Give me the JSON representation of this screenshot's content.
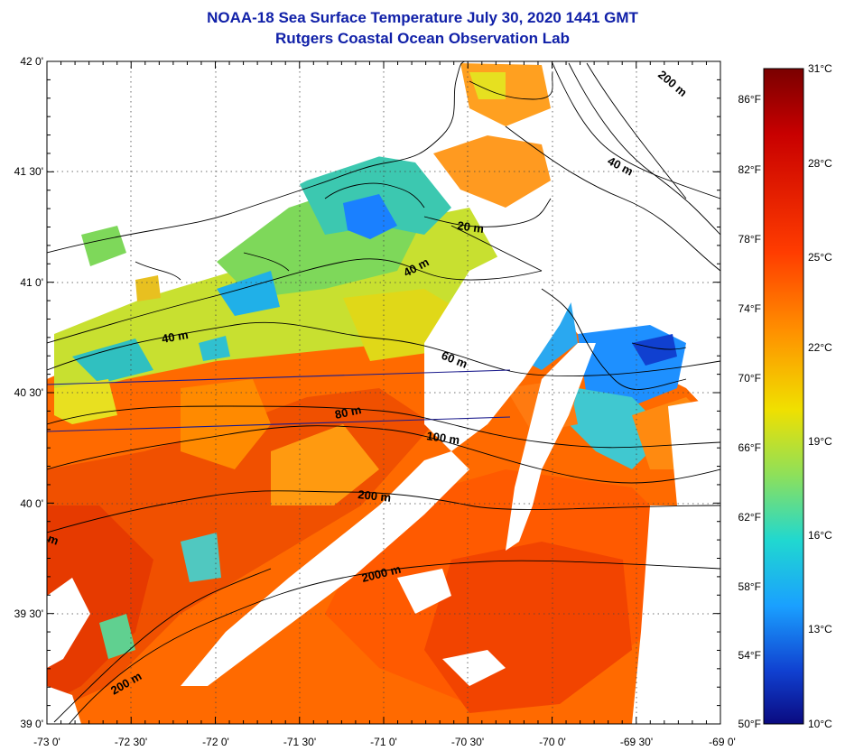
{
  "header": {
    "title": "NOAA-18 Sea Surface Temperature July 30, 2020 1441 GMT",
    "subtitle": "Rutgers Coastal Ocean Observation Lab"
  },
  "map": {
    "lat_labels": [
      "42 0'",
      "41 30'",
      "41 0'",
      "40 30'",
      "40 0'",
      "39 30'",
      "39 0'"
    ],
    "lon_labels": [
      "-73 0'",
      "-72 30'",
      "-72 0'",
      "-71 30'",
      "-71 0'",
      "-70 30'",
      "-70 0'",
      "-69 30'",
      "-69 0'"
    ],
    "depth_labels": [
      "200 m",
      "40 m",
      "20 m",
      "40 m",
      "40 m",
      "60 m",
      "80 m",
      "100 m",
      "200 m",
      "2000 m",
      "200 m",
      "m"
    ],
    "colors": {
      "land": "#ffffff",
      "coast": "#000000",
      "grid": "#444444",
      "track": "#1a1a8c"
    }
  },
  "colorbar": {
    "celsius": [
      "31°C",
      "28°C",
      "25°C",
      "22°C",
      "19°C",
      "16°C",
      "13°C",
      "10°C"
    ],
    "fahrenheit": [
      "86°F",
      "82°F",
      "78°F",
      "74°F",
      "70°F",
      "66°F",
      "62°F",
      "58°F",
      "54°F",
      "50°F"
    ],
    "stops": [
      "#7a0000",
      "#c80000",
      "#ff3c00",
      "#ff9000",
      "#f0e000",
      "#8ee05a",
      "#20d8d0",
      "#1aa0ff",
      "#1040d0",
      "#0a0a80"
    ]
  }
}
